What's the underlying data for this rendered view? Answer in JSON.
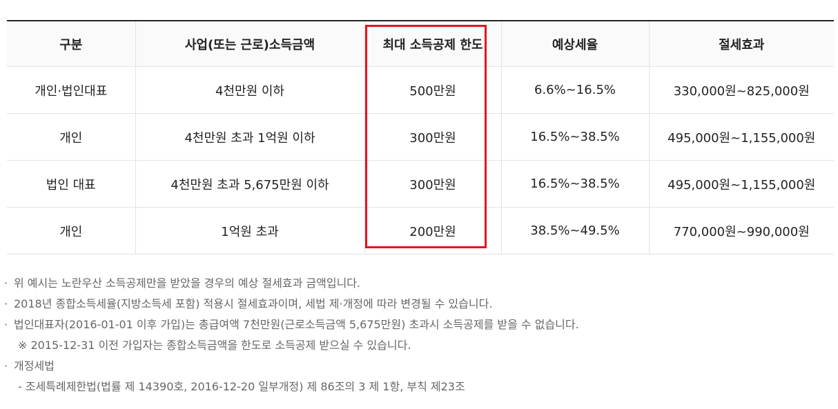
{
  "table": {
    "headers": [
      "구분",
      "사업(또는 근로)소득금액",
      "최대 소득공제 한도",
      "예상세율",
      "절세효과"
    ],
    "rows": [
      [
        "개인·법인대표",
        "4천만원 이하",
        "500만원",
        "6.6%~16.5%",
        "330,000원~825,000원"
      ],
      [
        "개인",
        "4천만원 초과 1억원 이하",
        "300만원",
        "16.5%~38.5%",
        "495,000원~1,155,000원"
      ],
      [
        "법인 대표",
        "4천만원 초과 5,675만원 이하",
        "300만원",
        "16.5%~38.5%",
        "495,000원~1,155,000원"
      ],
      [
        "개인",
        "1억원 초과",
        "200만원",
        "38.5%~49.5%",
        "770,000원~990,000원"
      ]
    ],
    "highlight_color": "#e8121d"
  },
  "notes": {
    "bullet": "·",
    "items": [
      "위 예시는 노란우산 소득공제만을 받았을 경우의 예상 절세효과 금액입니다.",
      "2018년 종합소득세율(지방소득세 포함) 적용시 절세효과이며, 세법 제·개정에 따라 변경될 수 있습니다.",
      "법인대표자(2016-01-01 이후 가입)는 총급여액 7천만원(근로소득금액 5,675만원) 초과시 소득공제를 받을 수 없습니다."
    ],
    "sub_note": "※ 2015-12-31 이전 가입자는 종합소득금액을 한도로 소득공제 받으실 수 있습니다.",
    "law_title": "개정세법",
    "law_detail": "- 조세특례제한법(법률 제 14390호, 2016-12-20 일부개정) 제 86조의 3 제 1항, 부칙 제23조"
  }
}
